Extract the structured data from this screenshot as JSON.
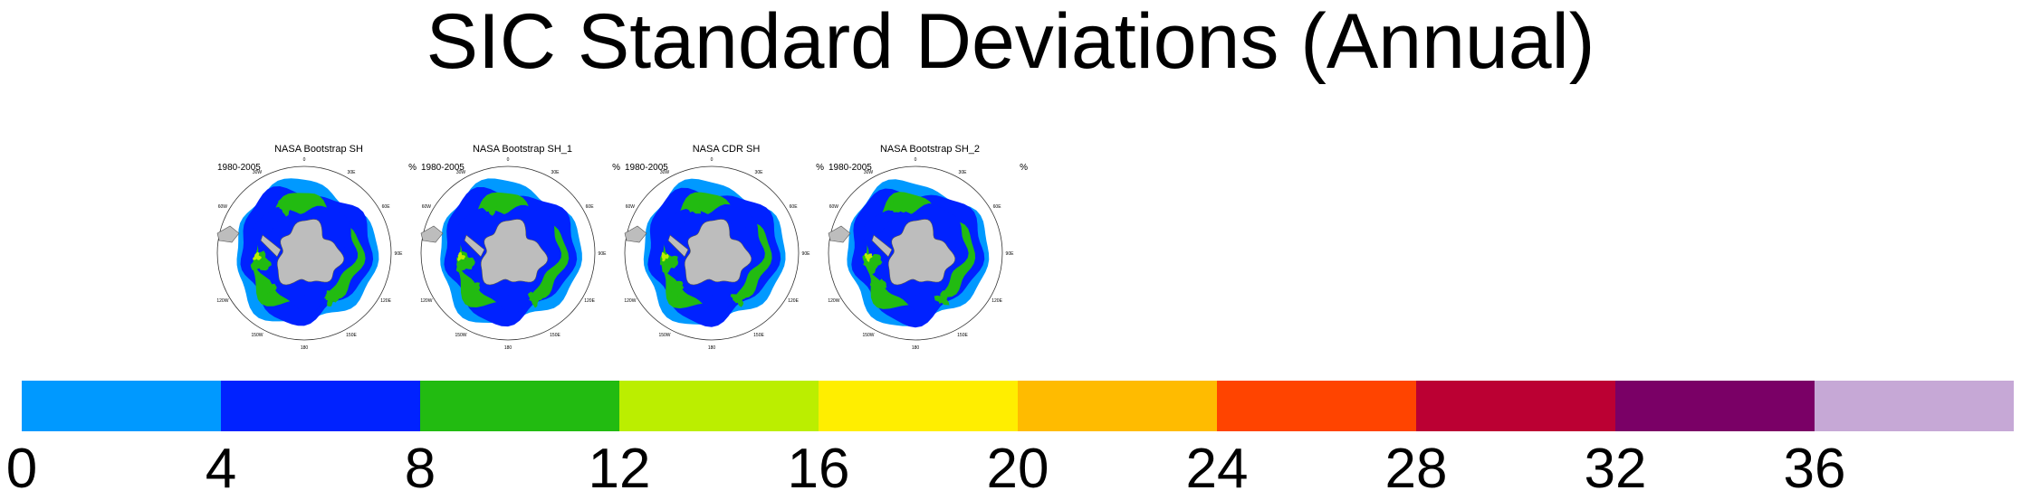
{
  "title": "SIC Standard Deviations (Annual)",
  "panels": [
    {
      "name": "NASA Bootstrap SH",
      "period": "1980-2005",
      "units": "%"
    },
    {
      "name": "NASA Bootstrap SH_1",
      "period": "1980-2005",
      "units": "%"
    },
    {
      "name": "NASA CDR SH",
      "period": "1980-2005",
      "units": "%"
    },
    {
      "name": "NASA Bootstrap SH_2",
      "period": "1980-2005",
      "units": "%"
    }
  ],
  "map": {
    "projection": "south-polar-stereographic",
    "land_color": "#bdbdbd",
    "lon_labels": [
      "0",
      "30E",
      "60E",
      "90E",
      "120E",
      "150E",
      "180",
      "150W",
      "120W",
      "90W",
      "60W",
      "30W"
    ]
  },
  "colorbar": {
    "ticks": [
      "0",
      "4",
      "8",
      "12",
      "16",
      "20",
      "24",
      "28",
      "32",
      "36"
    ],
    "colors": [
      "#0099ff",
      "#0022ff",
      "#22bb11",
      "#bbee00",
      "#ffee00",
      "#ffbb00",
      "#ff4400",
      "#bb0033",
      "#7a0066",
      "#c6a8d6"
    ]
  }
}
